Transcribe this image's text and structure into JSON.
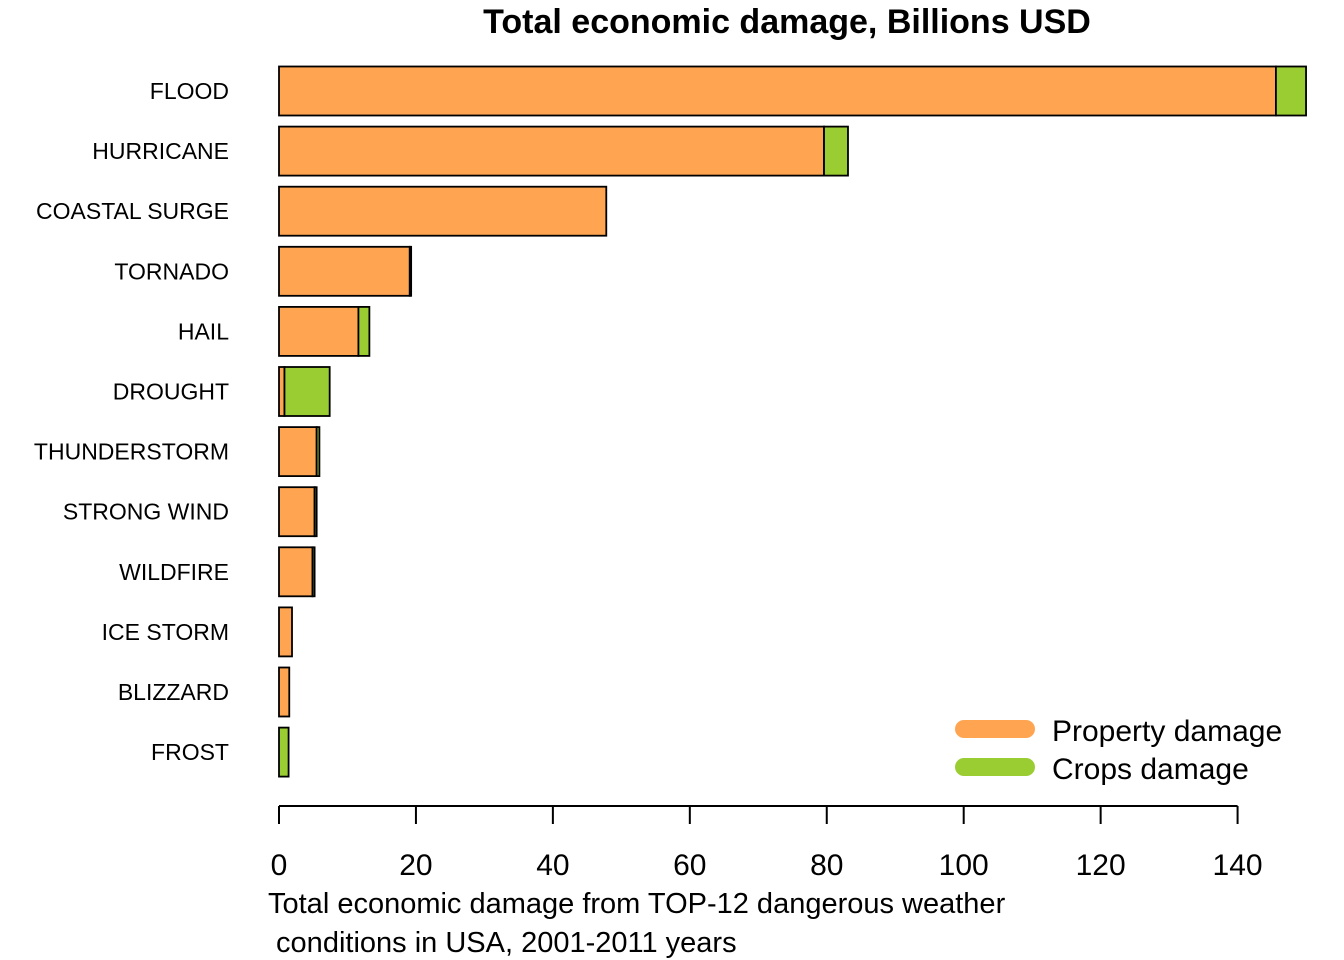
{
  "chart_data": {
    "type": "bar",
    "orientation": "horizontal",
    "stacked": true,
    "title": "Total economic damage, Billions USD",
    "xlabel_lines": [
      "Total economic damage from TOP-12 dangerous weather",
      " conditions in USA, 2001-2011 years"
    ],
    "ylabel": "",
    "categories": [
      "FLOOD",
      "HURRICANE",
      "COASTAL SURGE",
      "TORNADO",
      "HAIL",
      "DROUGHT",
      "THUNDERSTORM",
      "STRONG WIND",
      "WILDFIRE",
      "ICE STORM",
      "BLIZZARD",
      "FROST"
    ],
    "series": [
      {
        "name": "Property damage",
        "color": "#FFA552",
        "values": [
          145.6,
          79.6,
          47.8,
          19.1,
          11.6,
          0.8,
          5.5,
          5.2,
          4.9,
          1.9,
          1.5,
          0.0
        ]
      },
      {
        "name": "Crops damage",
        "color": "#9ACD32",
        "values": [
          4.4,
          3.5,
          0.0,
          0.2,
          1.6,
          6.6,
          0.4,
          0.3,
          0.3,
          0.0,
          0.0,
          1.4
        ]
      }
    ],
    "xlim": [
      0,
      150
    ],
    "xticks": [
      0,
      20,
      40,
      60,
      80,
      100,
      120,
      140
    ],
    "grid": false,
    "legend_position": "bottom-right"
  }
}
